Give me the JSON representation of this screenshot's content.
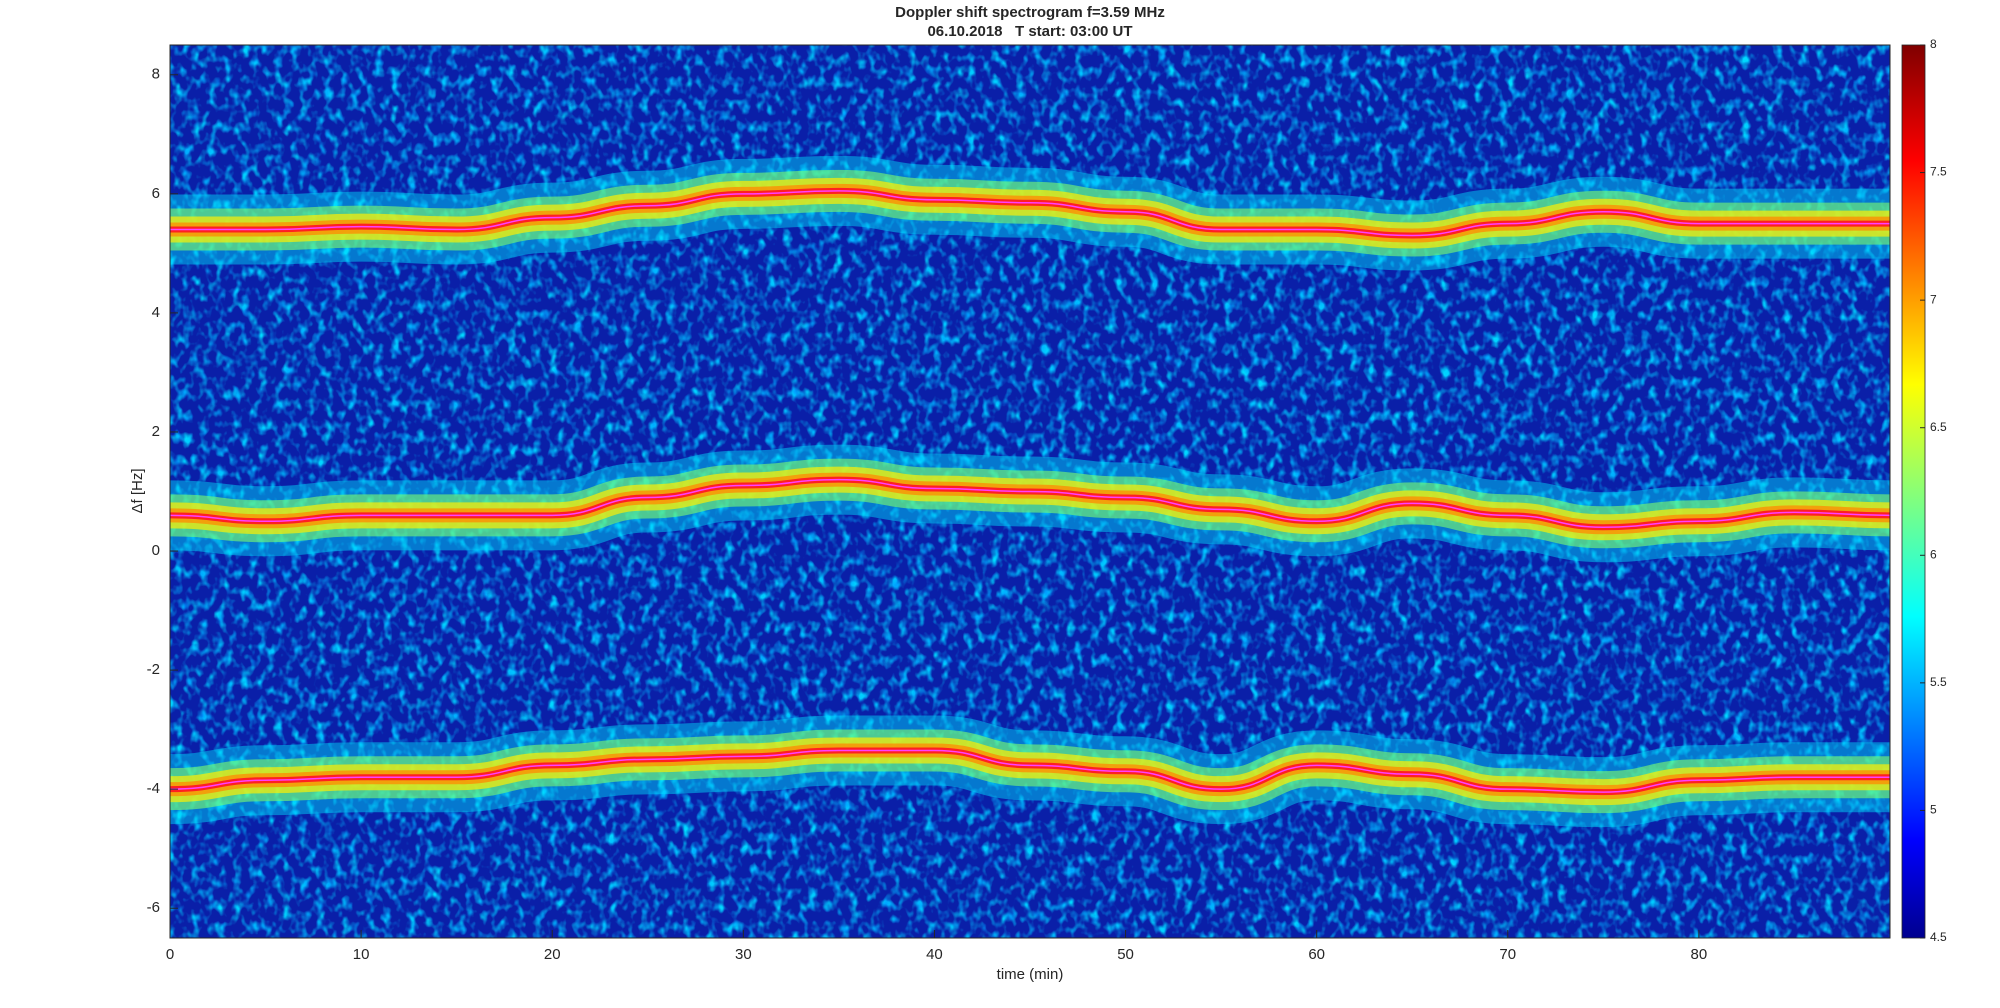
{
  "chart_data": {
    "type": "spectrogram",
    "title": "Doppler shift spectrogram f=3.59 MHz",
    "subtitle": "06.10.2018   T start: 03:00 UT",
    "x_label": "time (min)",
    "y_label": "Δf [Hz]",
    "x": [
      0,
      5,
      10,
      15,
      20,
      25,
      30,
      35,
      40,
      45,
      50,
      55,
      60,
      65,
      70,
      75,
      80,
      85,
      90
    ],
    "series": [
      {
        "color": "#ff2020",
        "values": [
          5.4,
          5.4,
          5.45,
          5.4,
          5.6,
          5.8,
          6.0,
          6.05,
          5.9,
          5.85,
          5.7,
          5.4,
          5.4,
          5.3,
          5.5,
          5.7,
          5.5,
          5.5,
          5.5
        ]
      },
      {
        "color": "#ff2020",
        "values": [
          0.6,
          0.5,
          0.6,
          0.6,
          0.6,
          0.9,
          1.1,
          1.2,
          1.05,
          1.0,
          0.9,
          0.7,
          0.5,
          0.8,
          0.6,
          0.4,
          0.5,
          0.65,
          0.6
        ]
      },
      {
        "color": "#ff2020",
        "values": [
          -4.0,
          -3.85,
          -3.8,
          -3.8,
          -3.6,
          -3.5,
          -3.45,
          -3.35,
          -3.35,
          -3.6,
          -3.7,
          -4.0,
          -3.6,
          -3.75,
          -4.0,
          -4.05,
          -3.85,
          -3.8,
          -3.8
        ]
      }
    ],
    "xlim": [
      0,
      90
    ],
    "xticks": [
      0,
      10,
      20,
      30,
      40,
      50,
      60,
      70,
      80
    ],
    "ylim": [
      -6.5,
      8.5
    ],
    "yticks": [
      -6,
      -4,
      -2,
      0,
      2,
      4,
      6,
      8
    ],
    "colormap": "jet",
    "clim": [
      4.5,
      8
    ],
    "cticks": [
      4.5,
      5,
      5.5,
      6,
      6.5,
      7,
      7.5,
      8
    ]
  }
}
